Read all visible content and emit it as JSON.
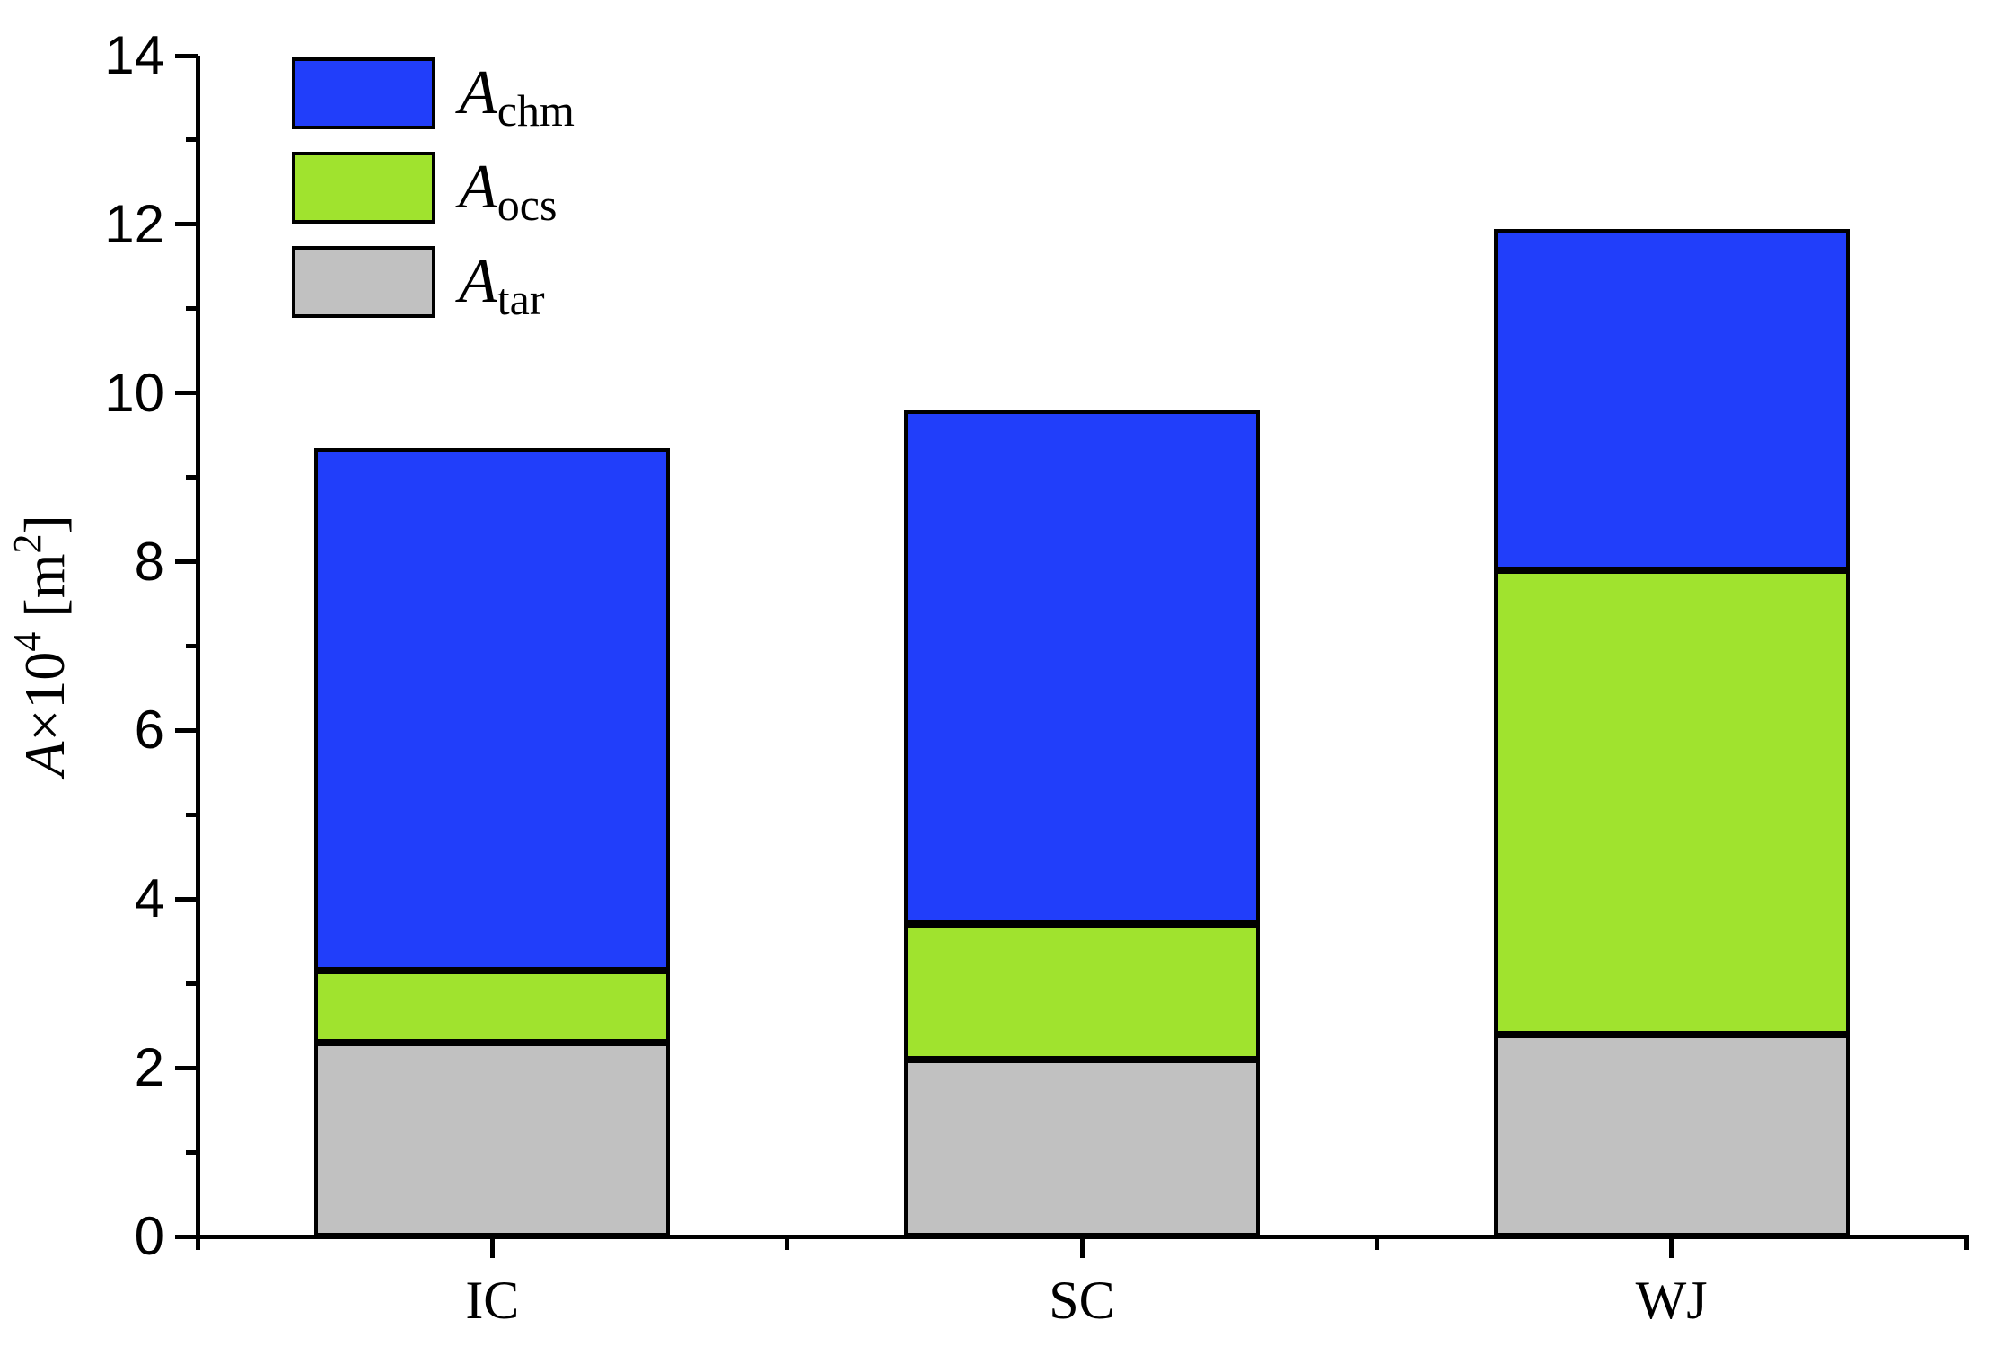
{
  "chart_data": {
    "type": "bar",
    "stacked": true,
    "title": "",
    "xlabel": "",
    "ylabel": {
      "var": "A",
      "times": "×10",
      "exp": "4",
      "unit_pre": " [m",
      "unit_exp": "2",
      "unit_post": "]"
    },
    "categories": [
      "IC",
      "SC",
      "WJ"
    ],
    "series": [
      {
        "name": "Achm",
        "label_main": "A",
        "label_sub": "chm",
        "color": "#213EFA",
        "values": [
          6.2,
          6.1,
          4.05
        ]
      },
      {
        "name": "Aocs",
        "label_main": "A",
        "label_sub": "ocs",
        "color": "#A0E32E",
        "values": [
          0.85,
          1.6,
          5.5
        ]
      },
      {
        "name": "Atar",
        "label_main": "A",
        "label_sub": "tar",
        "color": "#C1C1C1",
        "values": [
          2.3,
          2.1,
          2.4
        ]
      }
    ],
    "stack_order_bottom_to_top": [
      "Atar",
      "Aocs",
      "Achm"
    ],
    "ylim": [
      0,
      14
    ],
    "ytick_major_step": 2,
    "ytick_minor_step": 1,
    "ytick_labels": [
      "0",
      "2",
      "4",
      "6",
      "8",
      "10",
      "12",
      "14"
    ],
    "legend_position": "top-left",
    "grid": false,
    "bar_outline_color": "#000000",
    "axis_color": "#000000",
    "background_color": "#ffffff"
  }
}
